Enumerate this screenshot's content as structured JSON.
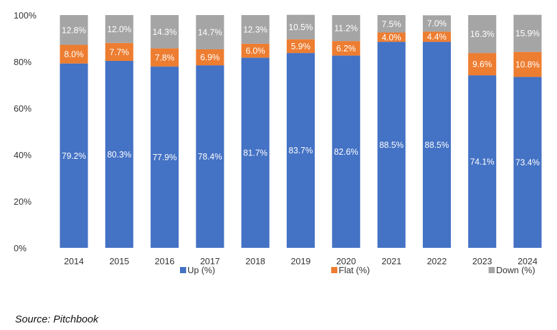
{
  "chart_data": {
    "type": "bar",
    "stacked": true,
    "categories": [
      "2014",
      "2015",
      "2016",
      "2017",
      "2018",
      "2019",
      "2020",
      "2021",
      "2022",
      "2023",
      "2024"
    ],
    "series": [
      {
        "name": "Up (%)",
        "color": "#4472C4",
        "values": [
          79.2,
          80.3,
          77.9,
          78.4,
          81.7,
          83.7,
          82.6,
          88.5,
          88.5,
          74.1,
          73.4
        ]
      },
      {
        "name": "Flat (%)",
        "color": "#ED7D31",
        "values": [
          8.0,
          7.7,
          7.8,
          6.9,
          6.0,
          5.9,
          6.2,
          4.0,
          4.4,
          9.6,
          10.8
        ]
      },
      {
        "name": "Down (%)",
        "color": "#A5A5A5",
        "values": [
          12.8,
          12.0,
          14.3,
          14.7,
          12.3,
          10.5,
          11.2,
          7.5,
          7.0,
          16.3,
          15.9
        ]
      }
    ],
    "data_labels": [
      [
        "79.2%",
        "80.3%",
        "77.9%",
        "78.4%",
        "81.7%",
        "83.7%",
        "82.6%",
        "88.5%",
        "88.5%",
        "74.1%",
        "73.4%"
      ],
      [
        "8.0%",
        "7.7%",
        "7.8%",
        "6.9%",
        "6.0%",
        "5.9%",
        "6.2%",
        "4.0%",
        "4.4%",
        "9.6%",
        "10.8%"
      ],
      [
        "12.8%",
        "12.0%",
        "14.3%",
        "14.7%",
        "12.3%",
        "10.5%",
        "11.2%",
        "7.5%",
        "7.0%",
        "16.3%",
        "15.9%"
      ]
    ],
    "y_ticks": [
      "0%",
      "20%",
      "40%",
      "60%",
      "80%",
      "100%"
    ],
    "ylim": [
      0,
      100
    ],
    "grid": false,
    "legend_position": "bottom"
  },
  "source": "Source: Pitchbook"
}
